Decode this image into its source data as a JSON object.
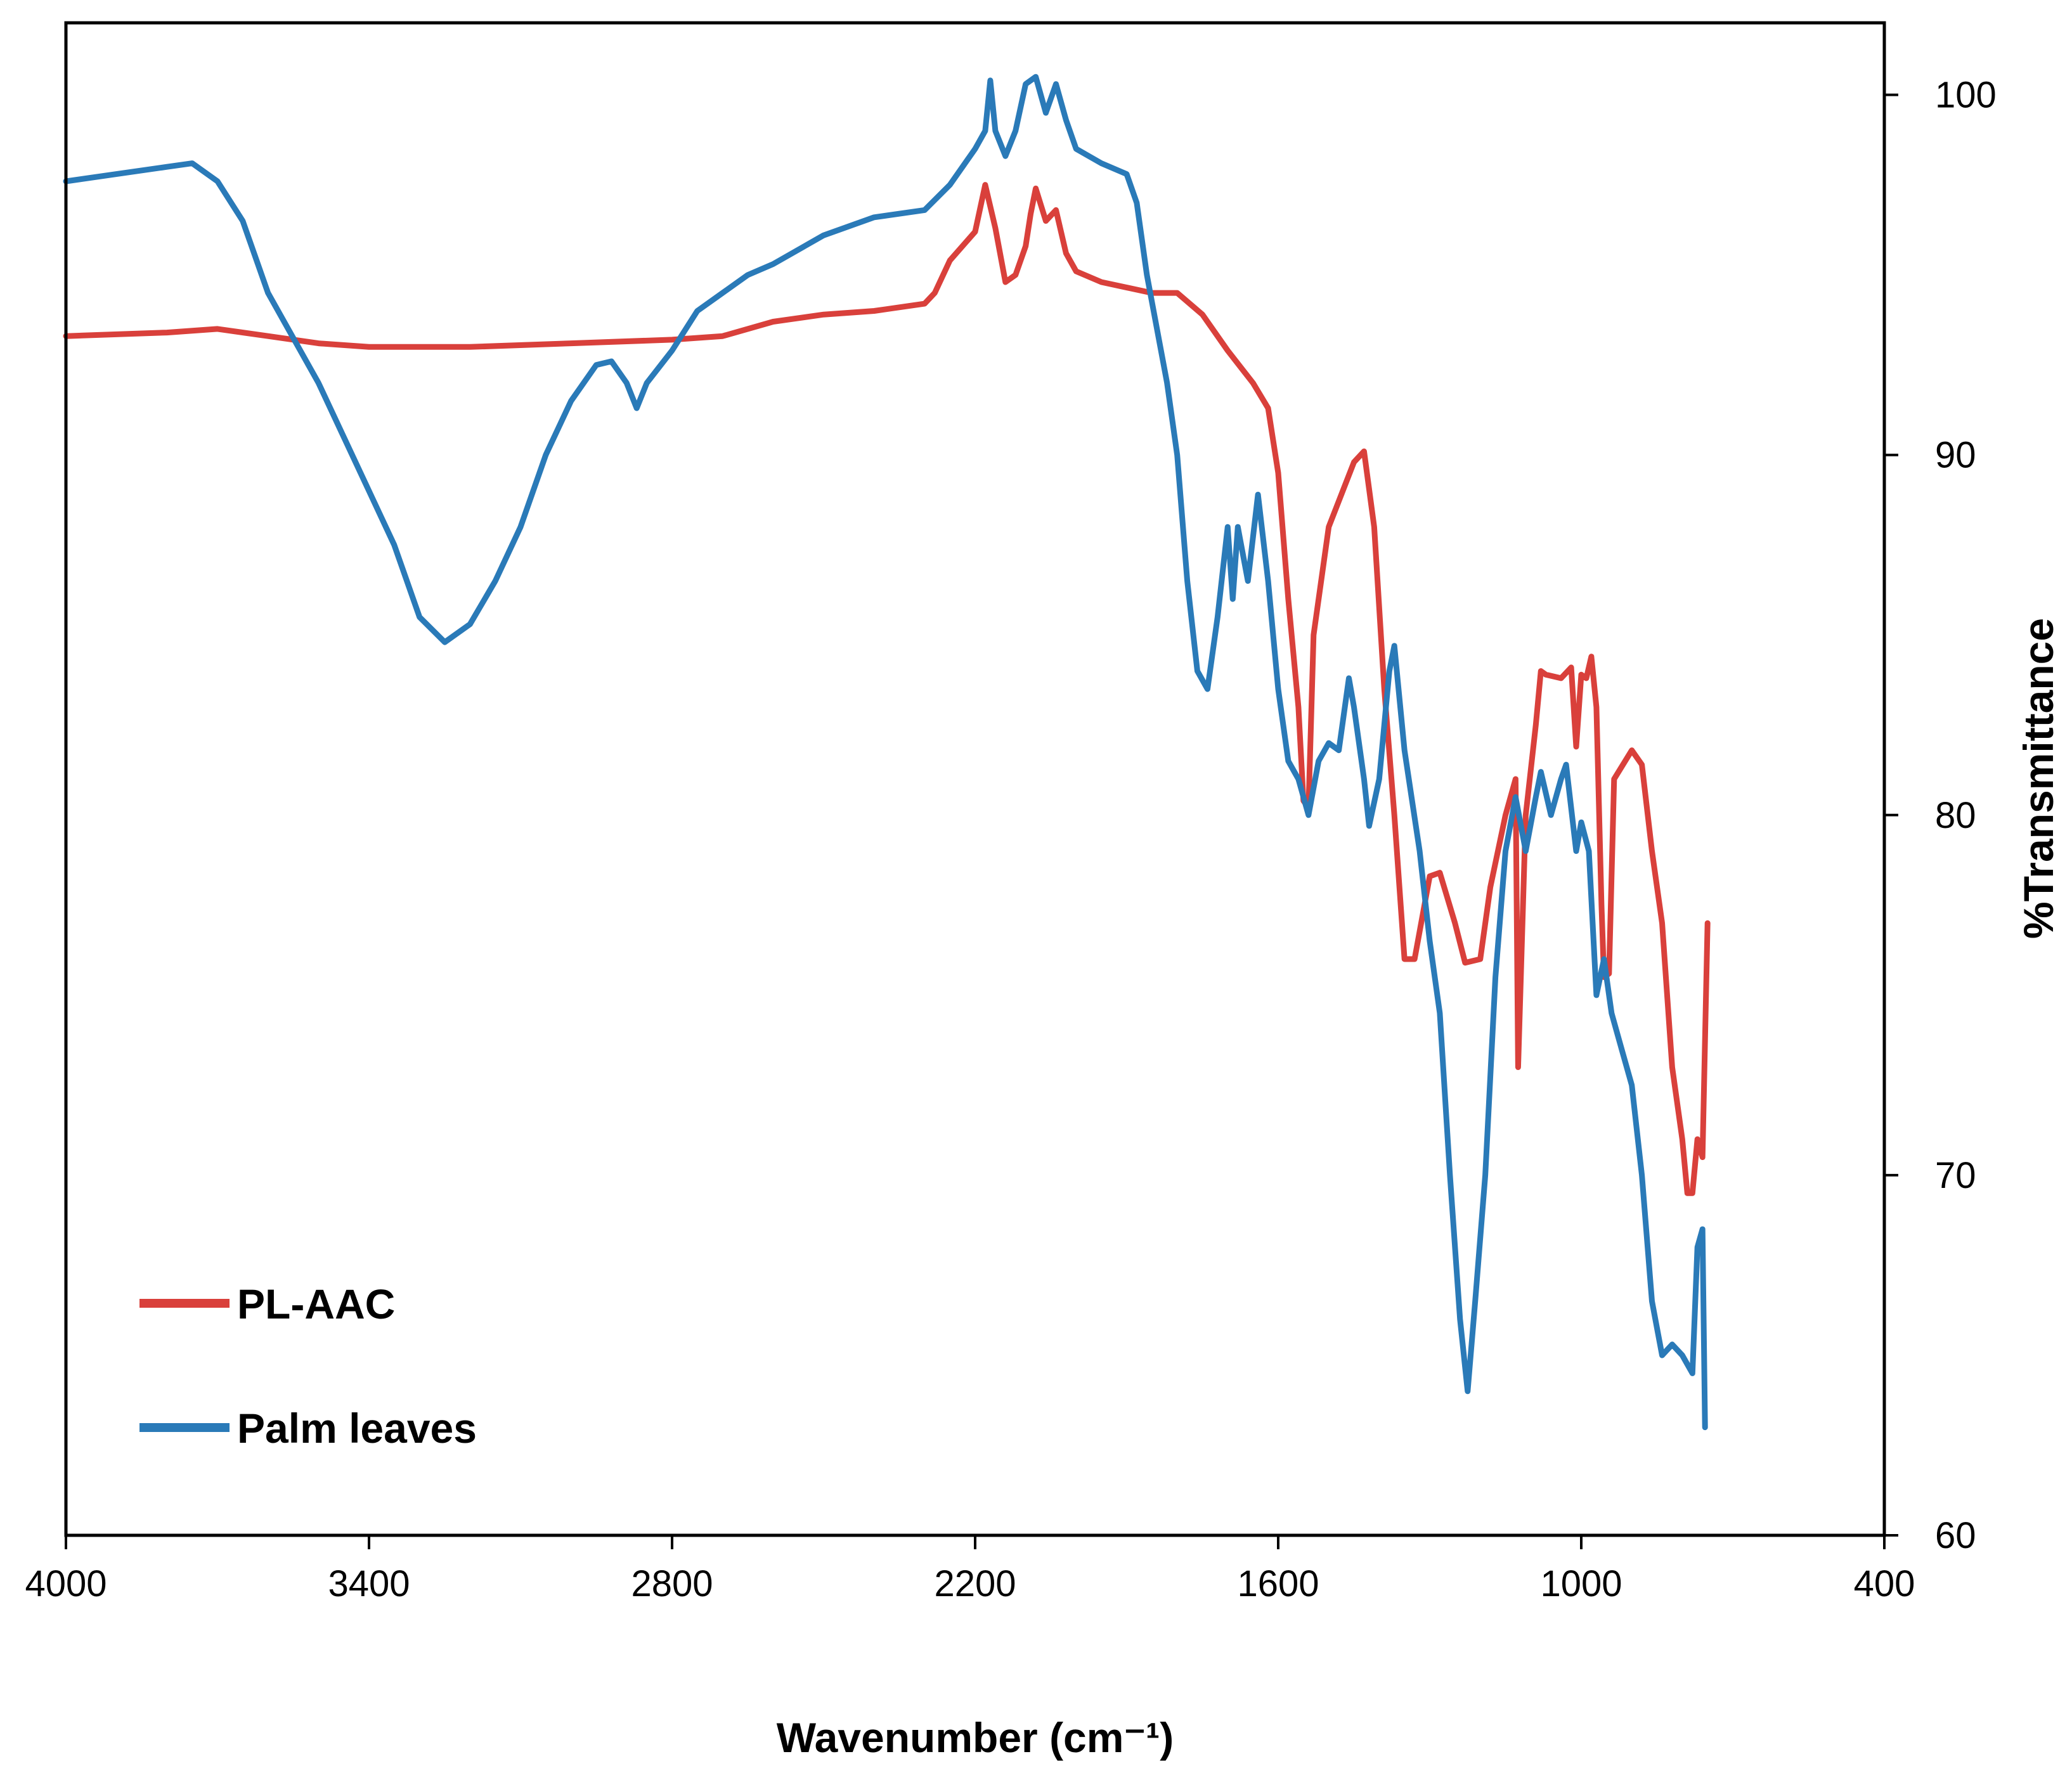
{
  "chart_data": {
    "type": "line",
    "xlabel": "Wavenumber (cm⁻¹)",
    "ylabel": "%Transmittance",
    "xlim": [
      4000,
      400
    ],
    "ylim": [
      60,
      102
    ],
    "x_reversed": true,
    "y_axis_side": "right",
    "grid": false,
    "legend_position": "bottom-left",
    "x_ticks": [
      4000,
      3400,
      2800,
      2200,
      1600,
      1000,
      400
    ],
    "y_ticks": [
      60,
      70,
      80,
      90,
      100
    ],
    "series": [
      {
        "name": "PL-AAC",
        "color": "#d9403b",
        "points": [
          [
            4000,
            93.3
          ],
          [
            3800,
            93.4
          ],
          [
            3700,
            93.5
          ],
          [
            3600,
            93.3
          ],
          [
            3500,
            93.1
          ],
          [
            3400,
            93.0
          ],
          [
            3300,
            93.0
          ],
          [
            3200,
            93.0
          ],
          [
            3000,
            93.1
          ],
          [
            2800,
            93.2
          ],
          [
            2700,
            93.3
          ],
          [
            2600,
            93.7
          ],
          [
            2500,
            93.9
          ],
          [
            2400,
            94.0
          ],
          [
            2300,
            94.2
          ],
          [
            2280,
            94.5
          ],
          [
            2250,
            95.4
          ],
          [
            2200,
            96.2
          ],
          [
            2180,
            97.5
          ],
          [
            2160,
            96.3
          ],
          [
            2140,
            94.8
          ],
          [
            2120,
            95.0
          ],
          [
            2100,
            95.8
          ],
          [
            2090,
            96.7
          ],
          [
            2080,
            97.4
          ],
          [
            2060,
            96.5
          ],
          [
            2040,
            96.8
          ],
          [
            2020,
            95.6
          ],
          [
            2000,
            95.1
          ],
          [
            1950,
            94.8
          ],
          [
            1850,
            94.5
          ],
          [
            1800,
            94.5
          ],
          [
            1750,
            93.9
          ],
          [
            1700,
            92.9
          ],
          [
            1650,
            92.0
          ],
          [
            1620,
            91.3
          ],
          [
            1600,
            89.5
          ],
          [
            1580,
            86.0
          ],
          [
            1560,
            83.0
          ],
          [
            1550,
            80.4
          ],
          [
            1540,
            80.2
          ],
          [
            1530,
            85.0
          ],
          [
            1500,
            88.0
          ],
          [
            1450,
            89.8
          ],
          [
            1430,
            90.1
          ],
          [
            1410,
            88.0
          ],
          [
            1390,
            83.5
          ],
          [
            1370,
            80.0
          ],
          [
            1350,
            76.0
          ],
          [
            1330,
            76.0
          ],
          [
            1300,
            78.3
          ],
          [
            1280,
            78.4
          ],
          [
            1250,
            77.0
          ],
          [
            1230,
            75.9
          ],
          [
            1200,
            76.0
          ],
          [
            1180,
            78.0
          ],
          [
            1150,
            80.0
          ],
          [
            1130,
            81.0
          ],
          [
            1125,
            73.0
          ],
          [
            1110,
            80.0
          ],
          [
            1090,
            82.5
          ],
          [
            1080,
            84.0
          ],
          [
            1070,
            83.9
          ],
          [
            1040,
            83.8
          ],
          [
            1020,
            84.1
          ],
          [
            1010,
            81.9
          ],
          [
            1000,
            83.9
          ],
          [
            990,
            83.8
          ],
          [
            980,
            84.4
          ],
          [
            970,
            83.0
          ],
          [
            960,
            77.5
          ],
          [
            955,
            75.5
          ],
          [
            945,
            75.6
          ],
          [
            935,
            81.0
          ],
          [
            900,
            81.8
          ],
          [
            880,
            81.4
          ],
          [
            860,
            79.0
          ],
          [
            840,
            77.0
          ],
          [
            820,
            73.0
          ],
          [
            800,
            71.0
          ],
          [
            790,
            69.5
          ],
          [
            780,
            69.5
          ],
          [
            770,
            71.0
          ],
          [
            760,
            70.5
          ],
          [
            750,
            77.0
          ]
        ]
      },
      {
        "name": "Palm leaves",
        "color": "#2a7ab8",
        "points": [
          [
            4000,
            97.6
          ],
          [
            3900,
            97.8
          ],
          [
            3800,
            98.0
          ],
          [
            3750,
            98.1
          ],
          [
            3700,
            97.6
          ],
          [
            3650,
            96.5
          ],
          [
            3600,
            94.5
          ],
          [
            3500,
            92.0
          ],
          [
            3400,
            89.0
          ],
          [
            3350,
            87.5
          ],
          [
            3300,
            85.5
          ],
          [
            3250,
            84.8
          ],
          [
            3200,
            85.3
          ],
          [
            3150,
            86.5
          ],
          [
            3100,
            88.0
          ],
          [
            3050,
            90.0
          ],
          [
            3000,
            91.5
          ],
          [
            2950,
            92.5
          ],
          [
            2920,
            92.6
          ],
          [
            2890,
            92.0
          ],
          [
            2870,
            91.3
          ],
          [
            2850,
            92.0
          ],
          [
            2800,
            92.9
          ],
          [
            2750,
            94.0
          ],
          [
            2700,
            94.5
          ],
          [
            2650,
            95.0
          ],
          [
            2600,
            95.3
          ],
          [
            2500,
            96.1
          ],
          [
            2400,
            96.6
          ],
          [
            2300,
            96.8
          ],
          [
            2250,
            97.5
          ],
          [
            2200,
            98.5
          ],
          [
            2180,
            99.0
          ],
          [
            2170,
            100.4
          ],
          [
            2160,
            99.0
          ],
          [
            2140,
            98.3
          ],
          [
            2120,
            99.0
          ],
          [
            2100,
            100.3
          ],
          [
            2080,
            100.5
          ],
          [
            2060,
            99.5
          ],
          [
            2040,
            100.3
          ],
          [
            2020,
            99.3
          ],
          [
            2000,
            98.5
          ],
          [
            1950,
            98.1
          ],
          [
            1900,
            97.8
          ],
          [
            1880,
            97.0
          ],
          [
            1860,
            95.0
          ],
          [
            1840,
            93.5
          ],
          [
            1820,
            92.0
          ],
          [
            1800,
            90.0
          ],
          [
            1780,
            86.5
          ],
          [
            1760,
            84.0
          ],
          [
            1740,
            83.5
          ],
          [
            1720,
            85.5
          ],
          [
            1700,
            88.0
          ],
          [
            1690,
            86.0
          ],
          [
            1680,
            88.0
          ],
          [
            1660,
            86.5
          ],
          [
            1640,
            88.9
          ],
          [
            1620,
            86.5
          ],
          [
            1600,
            83.5
          ],
          [
            1580,
            81.5
          ],
          [
            1560,
            81.0
          ],
          [
            1540,
            80.0
          ],
          [
            1520,
            81.5
          ],
          [
            1500,
            82.0
          ],
          [
            1480,
            81.8
          ],
          [
            1460,
            83.8
          ],
          [
            1450,
            83.0
          ],
          [
            1430,
            81.0
          ],
          [
            1420,
            79.7
          ],
          [
            1400,
            81.0
          ],
          [
            1380,
            84.0
          ],
          [
            1370,
            84.7
          ],
          [
            1350,
            81.8
          ],
          [
            1320,
            79.0
          ],
          [
            1300,
            76.5
          ],
          [
            1280,
            74.5
          ],
          [
            1260,
            70.0
          ],
          [
            1240,
            66.0
          ],
          [
            1225,
            64.0
          ],
          [
            1210,
            66.5
          ],
          [
            1190,
            70.0
          ],
          [
            1170,
            75.5
          ],
          [
            1150,
            79.0
          ],
          [
            1130,
            80.5
          ],
          [
            1110,
            79.0
          ],
          [
            1090,
            80.5
          ],
          [
            1080,
            81.2
          ],
          [
            1060,
            80.0
          ],
          [
            1040,
            81.0
          ],
          [
            1030,
            81.4
          ],
          [
            1010,
            79.0
          ],
          [
            1000,
            79.8
          ],
          [
            985,
            79.0
          ],
          [
            970,
            75.0
          ],
          [
            955,
            76.0
          ],
          [
            940,
            74.5
          ],
          [
            920,
            73.5
          ],
          [
            900,
            72.5
          ],
          [
            880,
            70.0
          ],
          [
            860,
            66.5
          ],
          [
            840,
            65.0
          ],
          [
            820,
            65.3
          ],
          [
            800,
            65.0
          ],
          [
            780,
            64.5
          ],
          [
            770,
            68.0
          ],
          [
            760,
            68.5
          ],
          [
            755,
            63.0
          ]
        ]
      }
    ]
  }
}
